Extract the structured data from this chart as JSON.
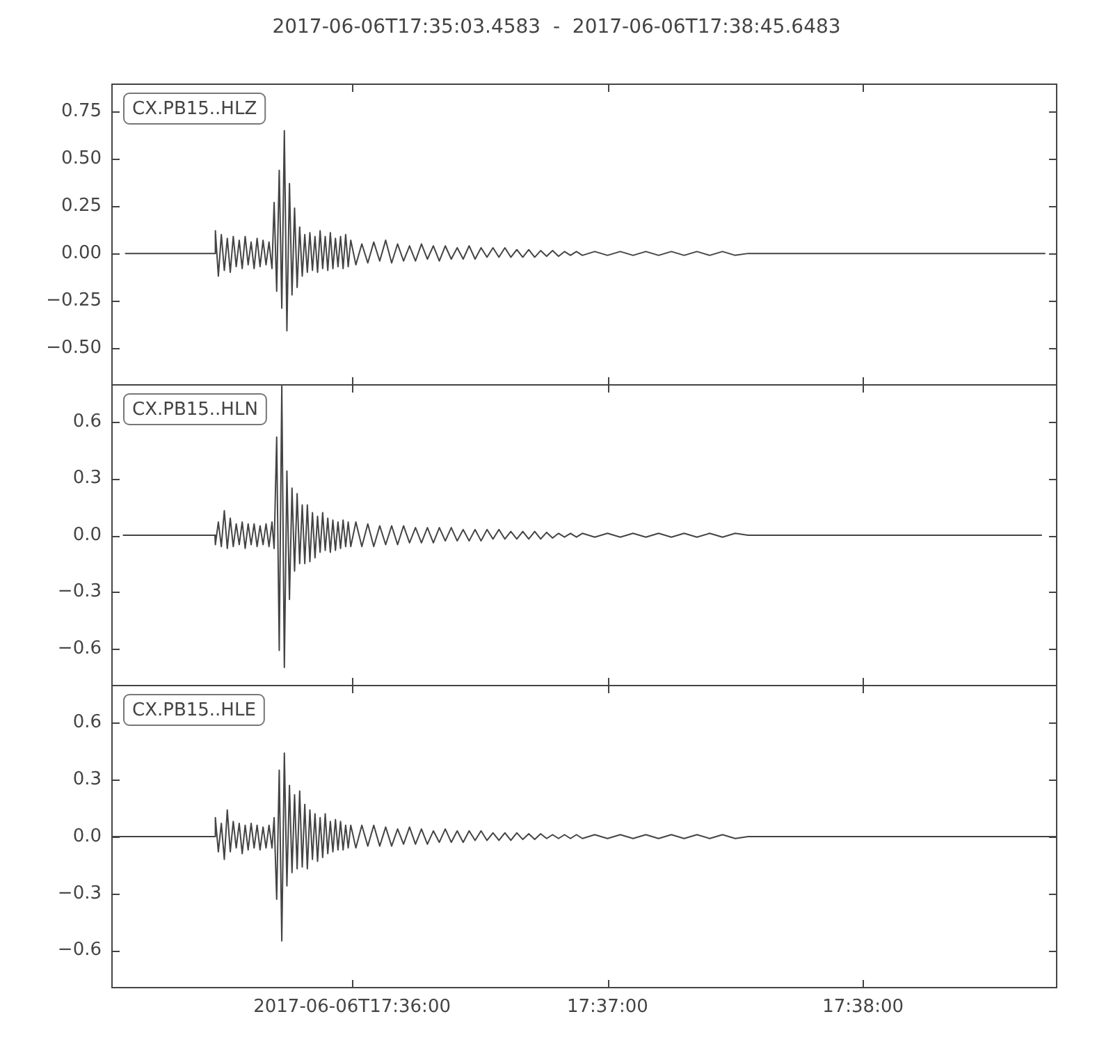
{
  "chart_data": [
    {
      "type": "line",
      "title": "2017-06-06T17:35:03.4583  -  2017-06-06T17:38:45.6483",
      "x": [
        "2017-06-06T17:35:06.8",
        "2017-06-06T17:35:27.8",
        "2017-06-06T17:35:27.9",
        "2017-06-06T17:35:28.6",
        "2017-06-06T17:35:29.3",
        "2017-06-06T17:35:30.0",
        "2017-06-06T17:35:30.7",
        "2017-06-06T17:35:31.4",
        "2017-06-06T17:35:32.1",
        "2017-06-06T17:35:32.8",
        "2017-06-06T17:35:33.5",
        "2017-06-06T17:35:34.2",
        "2017-06-06T17:35:34.9",
        "2017-06-06T17:35:35.6",
        "2017-06-06T17:35:36.3",
        "2017-06-06T17:35:37.0",
        "2017-06-06T17:35:37.7",
        "2017-06-06T17:35:38.4",
        "2017-06-06T17:35:39.1",
        "2017-06-06T17:35:39.8",
        "2017-06-06T17:35:40.5",
        "2017-06-06T17:35:41.2",
        "2017-06-06T17:35:41.7",
        "2017-06-06T17:35:42.3",
        "2017-06-06T17:35:42.9",
        "2017-06-06T17:35:43.5",
        "2017-06-06T17:35:44.1",
        "2017-06-06T17:35:44.7",
        "2017-06-06T17:35:45.3",
        "2017-06-06T17:35:45.9",
        "2017-06-06T17:35:46.5",
        "2017-06-06T17:35:47.1",
        "2017-06-06T17:35:47.7",
        "2017-06-06T17:35:48.3",
        "2017-06-06T17:35:48.9",
        "2017-06-06T17:35:49.5",
        "2017-06-06T17:35:50.1",
        "2017-06-06T17:35:50.7",
        "2017-06-06T17:35:51.3",
        "2017-06-06T17:35:51.9",
        "2017-06-06T17:35:52.5",
        "2017-06-06T17:35:53.1",
        "2017-06-06T17:35:53.7",
        "2017-06-06T17:35:54.3",
        "2017-06-06T17:35:54.9",
        "2017-06-06T17:35:55.5",
        "2017-06-06T17:35:56.1",
        "2017-06-06T17:35:56.7",
        "2017-06-06T17:35:57.3",
        "2017-06-06T17:35:57.9",
        "2017-06-06T17:35:58.5",
        "2017-06-06T17:35:59.1",
        "2017-06-06T17:35:59.7",
        "2017-06-06T17:36:00.9",
        "2017-06-06T17:36:02.3",
        "2017-06-06T17:36:03.7",
        "2017-06-06T17:36:05.1",
        "2017-06-06T17:36:06.5",
        "2017-06-06T17:36:07.9",
        "2017-06-06T17:36:09.3",
        "2017-06-06T17:36:10.7",
        "2017-06-06T17:36:12.1",
        "2017-06-06T17:36:13.5",
        "2017-06-06T17:36:14.9",
        "2017-06-06T17:36:16.3",
        "2017-06-06T17:36:17.7",
        "2017-06-06T17:36:19.1",
        "2017-06-06T17:36:20.5",
        "2017-06-06T17:36:21.9",
        "2017-06-06T17:36:23.3",
        "2017-06-06T17:36:24.7",
        "2017-06-06T17:36:26.1",
        "2017-06-06T17:36:27.5",
        "2017-06-06T17:36:28.9",
        "2017-06-06T17:36:30.3",
        "2017-06-06T17:36:31.7",
        "2017-06-06T17:36:33.1",
        "2017-06-06T17:36:34.5",
        "2017-06-06T17:36:35.9",
        "2017-06-06T17:36:37.3",
        "2017-06-06T17:36:38.7",
        "2017-06-06T17:36:40.1",
        "2017-06-06T17:36:41.5",
        "2017-06-06T17:36:42.9",
        "2017-06-06T17:36:44.3",
        "2017-06-06T17:36:45.7",
        "2017-06-06T17:36:47.1",
        "2017-06-06T17:36:48.5",
        "2017-06-06T17:36:49.9",
        "2017-06-06T17:36:51.3",
        "2017-06-06T17:36:52.7",
        "2017-06-06T17:36:54.1",
        "2017-06-06T17:36:57",
        "2017-06-06T17:37:00",
        "2017-06-06T17:37:03",
        "2017-06-06T17:37:06",
        "2017-06-06T17:37:09",
        "2017-06-06T17:37:12",
        "2017-06-06T17:37:15",
        "2017-06-06T17:37:18",
        "2017-06-06T17:37:21",
        "2017-06-06T17:37:24",
        "2017-06-06T17:37:27",
        "2017-06-06T17:37:30",
        "2017-06-06T17:37:33",
        "2017-06-06T17:38:42.7"
      ],
      "series": [
        {
          "name": "CX.PB15..HLZ",
          "color": "#444444",
          "values": [
            0,
            0,
            0.12,
            -0.12,
            0.1,
            -0.09,
            0.08,
            -0.1,
            0.09,
            -0.07,
            0.07,
            -0.08,
            0.09,
            -0.06,
            0.06,
            -0.08,
            0.08,
            -0.07,
            0.07,
            -0.06,
            0.06,
            -0.08,
            0.27,
            -0.2,
            0.44,
            -0.29,
            0.65,
            -0.41,
            0.37,
            -0.22,
            0.24,
            -0.18,
            0.14,
            -0.12,
            0.1,
            -0.1,
            0.11,
            -0.09,
            0.09,
            -0.1,
            0.12,
            -0.08,
            0.09,
            -0.09,
            0.11,
            -0.08,
            0.08,
            -0.07,
            0.09,
            -0.08,
            0.1,
            -0.07,
            0.07,
            -0.06,
            0.05,
            -0.05,
            0.06,
            -0.04,
            0.07,
            -0.05,
            0.05,
            -0.04,
            0.04,
            -0.04,
            0.05,
            -0.03,
            0.04,
            -0.04,
            0.04,
            -0.03,
            0.03,
            -0.03,
            0.04,
            -0.03,
            0.03,
            -0.02,
            0.03,
            -0.02,
            0.03,
            -0.02,
            0.02,
            -0.02,
            0.02,
            -0.02,
            0.015,
            -0.015,
            0.015,
            -0.015,
            0.01,
            -0.01,
            0.01,
            -0.01,
            0.01,
            -0.01,
            0.01,
            -0.01,
            0.01,
            -0.01,
            0.01,
            -0.01,
            0.01,
            -0.01,
            0.01,
            -0.01,
            0,
            0
          ]
        }
      ],
      "xlim": [
        "2017-06-06T17:35:03.4583",
        "2017-06-06T17:38:45.6483"
      ],
      "xticks": [
        {
          "value": "2017-06-06T17:36:00",
          "label": null
        },
        {
          "value": "2017-06-06T17:37:00",
          "label": null
        },
        {
          "value": "2017-06-06T17:38:00",
          "label": null
        }
      ],
      "ylim": [
        -0.7,
        0.9
      ],
      "yticks": [
        {
          "value": -0.5,
          "label": "−0.50"
        },
        {
          "value": -0.25,
          "label": "−0.25"
        },
        {
          "value": 0,
          "label": "0.00"
        },
        0.25,
        {
          "value": 0.5,
          "label": "0.50"
        },
        0.75
      ],
      "tick_labels": "y"
    },
    {
      "type": "line",
      "x": [
        "2017-06-06T17:35:06.3",
        "2017-06-06T17:35:27.8",
        "2017-06-06T17:35:27.9",
        "2017-06-06T17:35:28.6",
        "2017-06-06T17:35:29.3",
        "2017-06-06T17:35:30.0",
        "2017-06-06T17:35:30.7",
        "2017-06-06T17:35:31.4",
        "2017-06-06T17:35:32.1",
        "2017-06-06T17:35:32.8",
        "2017-06-06T17:35:33.5",
        "2017-06-06T17:35:34.2",
        "2017-06-06T17:35:34.9",
        "2017-06-06T17:35:35.6",
        "2017-06-06T17:35:36.3",
        "2017-06-06T17:35:37.0",
        "2017-06-06T17:35:37.7",
        "2017-06-06T17:35:38.4",
        "2017-06-06T17:35:39.1",
        "2017-06-06T17:35:39.8",
        "2017-06-06T17:35:40.5",
        "2017-06-06T17:35:41.2",
        "2017-06-06T17:35:41.7",
        "2017-06-06T17:35:42.3",
        "2017-06-06T17:35:42.9",
        "2017-06-06T17:35:43.5",
        "2017-06-06T17:35:44.1",
        "2017-06-06T17:35:44.7",
        "2017-06-06T17:35:45.3",
        "2017-06-06T17:35:45.9",
        "2017-06-06T17:35:46.5",
        "2017-06-06T17:35:47.1",
        "2017-06-06T17:35:47.7",
        "2017-06-06T17:35:48.3",
        "2017-06-06T17:35:48.9",
        "2017-06-06T17:35:49.5",
        "2017-06-06T17:35:50.1",
        "2017-06-06T17:35:50.7",
        "2017-06-06T17:35:51.3",
        "2017-06-06T17:35:51.9",
        "2017-06-06T17:35:52.5",
        "2017-06-06T17:35:53.1",
        "2017-06-06T17:35:53.7",
        "2017-06-06T17:35:54.3",
        "2017-06-06T17:35:54.9",
        "2017-06-06T17:35:55.5",
        "2017-06-06T17:35:56.1",
        "2017-06-06T17:35:56.7",
        "2017-06-06T17:35:57.3",
        "2017-06-06T17:35:57.9",
        "2017-06-06T17:35:58.5",
        "2017-06-06T17:35:59.1",
        "2017-06-06T17:35:59.7",
        "2017-06-06T17:36:00.9",
        "2017-06-06T17:36:02.3",
        "2017-06-06T17:36:03.7",
        "2017-06-06T17:36:05.1",
        "2017-06-06T17:36:06.5",
        "2017-06-06T17:36:07.9",
        "2017-06-06T17:36:09.3",
        "2017-06-06T17:36:10.7",
        "2017-06-06T17:36:12.1",
        "2017-06-06T17:36:13.5",
        "2017-06-06T17:36:14.9",
        "2017-06-06T17:36:16.3",
        "2017-06-06T17:36:17.7",
        "2017-06-06T17:36:19.1",
        "2017-06-06T17:36:20.5",
        "2017-06-06T17:36:21.9",
        "2017-06-06T17:36:23.3",
        "2017-06-06T17:36:24.7",
        "2017-06-06T17:36:26.1",
        "2017-06-06T17:36:27.5",
        "2017-06-06T17:36:28.9",
        "2017-06-06T17:36:30.3",
        "2017-06-06T17:36:31.7",
        "2017-06-06T17:36:33.1",
        "2017-06-06T17:36:34.5",
        "2017-06-06T17:36:35.9",
        "2017-06-06T17:36:37.3",
        "2017-06-06T17:36:38.7",
        "2017-06-06T17:36:40.1",
        "2017-06-06T17:36:41.5",
        "2017-06-06T17:36:42.9",
        "2017-06-06T17:36:44.3",
        "2017-06-06T17:36:45.7",
        "2017-06-06T17:36:47.1",
        "2017-06-06T17:36:48.5",
        "2017-06-06T17:36:49.9",
        "2017-06-06T17:36:51.3",
        "2017-06-06T17:36:52.7",
        "2017-06-06T17:36:54.1",
        "2017-06-06T17:36:57",
        "2017-06-06T17:37:00",
        "2017-06-06T17:37:03",
        "2017-06-06T17:37:06",
        "2017-06-06T17:37:09",
        "2017-06-06T17:37:12",
        "2017-06-06T17:37:15",
        "2017-06-06T17:37:18",
        "2017-06-06T17:37:21",
        "2017-06-06T17:37:24",
        "2017-06-06T17:37:27",
        "2017-06-06T17:37:30",
        "2017-06-06T17:37:33",
        "2017-06-06T17:38:41.9"
      ],
      "series": [
        {
          "name": "CX.PB15..HLN",
          "color": "#444444",
          "values": [
            0,
            0,
            -0.05,
            0.07,
            -0.06,
            0.13,
            -0.07,
            0.09,
            -0.06,
            0.06,
            -0.05,
            0.07,
            -0.07,
            0.06,
            -0.05,
            0.06,
            -0.06,
            0.05,
            -0.05,
            0.06,
            -0.06,
            0.07,
            -0.07,
            0.52,
            -0.61,
            0.79,
            -0.7,
            0.34,
            -0.34,
            0.25,
            -0.19,
            0.22,
            -0.15,
            0.16,
            -0.15,
            0.16,
            -0.14,
            0.12,
            -0.12,
            0.1,
            -0.09,
            0.12,
            -0.08,
            0.09,
            -0.09,
            0.08,
            -0.08,
            0.07,
            -0.07,
            0.08,
            -0.06,
            0.07,
            -0.06,
            0.07,
            -0.06,
            0.06,
            -0.06,
            0.05,
            -0.05,
            0.05,
            -0.05,
            0.05,
            -0.04,
            0.04,
            -0.04,
            0.04,
            -0.04,
            0.04,
            -0.03,
            0.04,
            -0.03,
            0.03,
            -0.03,
            0.03,
            -0.03,
            0.03,
            -0.02,
            0.03,
            -0.02,
            0.02,
            -0.02,
            0.02,
            -0.02,
            0.02,
            -0.02,
            0.015,
            -0.015,
            0.01,
            -0.01,
            0.01,
            -0.01,
            0.01,
            -0.01,
            0.01,
            -0.01,
            0.01,
            -0.01,
            0.01,
            -0.01,
            0.01,
            -0.01,
            0.01,
            -0.01,
            0.01,
            0,
            0
          ]
        }
      ],
      "xlim": [
        "2017-06-06T17:35:03.4583",
        "2017-06-06T17:38:45.6483"
      ],
      "xticks": [
        {
          "value": "2017-06-06T17:36:00",
          "label": null
        },
        {
          "value": "2017-06-06T17:37:00",
          "label": null
        },
        {
          "value": "2017-06-06T17:38:00",
          "label": null
        }
      ],
      "ylim": [
        -0.8,
        0.8
      ],
      "yticks": [
        {
          "value": -0.6,
          "label": "−0.6"
        },
        {
          "value": -0.3,
          "label": "−0.3"
        },
        {
          "value": 0,
          "label": "0.0"
        },
        0.3,
        0.6
      ],
      "tick_labels": "y"
    },
    {
      "type": "line",
      "x": [
        "2017-06-06T17:35:03.4583",
        "2017-06-06T17:35:27.8",
        "2017-06-06T17:35:27.9",
        "2017-06-06T17:35:28.6",
        "2017-06-06T17:35:29.3",
        "2017-06-06T17:35:30.0",
        "2017-06-06T17:35:30.7",
        "2017-06-06T17:35:31.4",
        "2017-06-06T17:35:32.1",
        "2017-06-06T17:35:32.8",
        "2017-06-06T17:35:33.5",
        "2017-06-06T17:35:34.2",
        "2017-06-06T17:35:34.9",
        "2017-06-06T17:35:35.6",
        "2017-06-06T17:35:36.3",
        "2017-06-06T17:35:37.0",
        "2017-06-06T17:35:37.7",
        "2017-06-06T17:35:38.4",
        "2017-06-06T17:35:39.1",
        "2017-06-06T17:35:39.8",
        "2017-06-06T17:35:40.5",
        "2017-06-06T17:35:41.2",
        "2017-06-06T17:35:41.7",
        "2017-06-06T17:35:42.3",
        "2017-06-06T17:35:42.9",
        "2017-06-06T17:35:43.5",
        "2017-06-06T17:35:44.1",
        "2017-06-06T17:35:44.7",
        "2017-06-06T17:35:45.3",
        "2017-06-06T17:35:45.9",
        "2017-06-06T17:35:46.5",
        "2017-06-06T17:35:47.1",
        "2017-06-06T17:35:47.7",
        "2017-06-06T17:35:48.3",
        "2017-06-06T17:35:48.9",
        "2017-06-06T17:35:49.5",
        "2017-06-06T17:35:50.1",
        "2017-06-06T17:35:50.7",
        "2017-06-06T17:35:51.3",
        "2017-06-06T17:35:51.9",
        "2017-06-06T17:35:52.5",
        "2017-06-06T17:35:53.1",
        "2017-06-06T17:35:53.7",
        "2017-06-06T17:35:54.3",
        "2017-06-06T17:35:54.9",
        "2017-06-06T17:35:55.5",
        "2017-06-06T17:35:56.1",
        "2017-06-06T17:35:56.7",
        "2017-06-06T17:35:57.3",
        "2017-06-06T17:35:57.9",
        "2017-06-06T17:35:58.5",
        "2017-06-06T17:35:59.1",
        "2017-06-06T17:35:59.7",
        "2017-06-06T17:36:00.9",
        "2017-06-06T17:36:02.3",
        "2017-06-06T17:36:03.7",
        "2017-06-06T17:36:05.1",
        "2017-06-06T17:36:06.5",
        "2017-06-06T17:36:07.9",
        "2017-06-06T17:36:09.3",
        "2017-06-06T17:36:10.7",
        "2017-06-06T17:36:12.1",
        "2017-06-06T17:36:13.5",
        "2017-06-06T17:36:14.9",
        "2017-06-06T17:36:16.3",
        "2017-06-06T17:36:17.7",
        "2017-06-06T17:36:19.1",
        "2017-06-06T17:36:20.5",
        "2017-06-06T17:36:21.9",
        "2017-06-06T17:36:23.3",
        "2017-06-06T17:36:24.7",
        "2017-06-06T17:36:26.1",
        "2017-06-06T17:36:27.5",
        "2017-06-06T17:36:28.9",
        "2017-06-06T17:36:30.3",
        "2017-06-06T17:36:31.7",
        "2017-06-06T17:36:33.1",
        "2017-06-06T17:36:34.5",
        "2017-06-06T17:36:35.9",
        "2017-06-06T17:36:37.3",
        "2017-06-06T17:36:38.7",
        "2017-06-06T17:36:40.1",
        "2017-06-06T17:36:41.5",
        "2017-06-06T17:36:42.9",
        "2017-06-06T17:36:44.3",
        "2017-06-06T17:36:45.7",
        "2017-06-06T17:36:47.1",
        "2017-06-06T17:36:48.5",
        "2017-06-06T17:36:49.9",
        "2017-06-06T17:36:51.3",
        "2017-06-06T17:36:52.7",
        "2017-06-06T17:36:54.1",
        "2017-06-06T17:36:57",
        "2017-06-06T17:37:00",
        "2017-06-06T17:37:03",
        "2017-06-06T17:37:06",
        "2017-06-06T17:37:09",
        "2017-06-06T17:37:12",
        "2017-06-06T17:37:15",
        "2017-06-06T17:37:18",
        "2017-06-06T17:37:21",
        "2017-06-06T17:37:24",
        "2017-06-06T17:37:27",
        "2017-06-06T17:37:30",
        "2017-06-06T17:37:33",
        "2017-06-06T17:38:45.6483"
      ],
      "series": [
        {
          "name": "CX.PB15..HLE",
          "color": "#444444",
          "values": [
            0,
            0,
            0.1,
            -0.08,
            0.07,
            -0.12,
            0.14,
            -0.08,
            0.08,
            -0.06,
            0.07,
            -0.09,
            0.06,
            -0.07,
            0.07,
            -0.06,
            0.06,
            -0.07,
            0.05,
            -0.06,
            0.06,
            -0.06,
            0.1,
            -0.33,
            0.35,
            -0.55,
            0.44,
            -0.26,
            0.27,
            -0.19,
            0.22,
            -0.17,
            0.24,
            -0.16,
            0.17,
            -0.17,
            0.14,
            -0.12,
            0.12,
            -0.13,
            0.1,
            -0.11,
            0.12,
            -0.09,
            0.08,
            -0.08,
            0.09,
            -0.07,
            0.08,
            -0.07,
            0.06,
            -0.06,
            0.06,
            -0.06,
            0.06,
            -0.05,
            0.06,
            -0.05,
            0.05,
            -0.05,
            0.04,
            -0.04,
            0.05,
            -0.04,
            0.04,
            -0.04,
            0.03,
            -0.03,
            0.04,
            -0.03,
            0.03,
            -0.03,
            0.03,
            -0.02,
            0.03,
            -0.02,
            0.02,
            -0.02,
            0.02,
            -0.02,
            0.02,
            -0.015,
            0.015,
            -0.015,
            0.015,
            -0.01,
            0.01,
            -0.01,
            0.01,
            -0.01,
            0.01,
            -0.01,
            0.01,
            -0.01,
            0.01,
            -0.01,
            0.01,
            -0.01,
            0.01,
            -0.01,
            0.01,
            -0.01,
            0.01,
            -0.01,
            0,
            0
          ]
        }
      ],
      "xlim": [
        "2017-06-06T17:35:03.4583",
        "2017-06-06T17:38:45.6483"
      ],
      "xticks": [
        {
          "value": "2017-06-06T17:36:00",
          "label": "2017-06-06T17:36:00"
        },
        {
          "value": "2017-06-06T17:37:00",
          "label": "17:37:00"
        },
        {
          "value": "2017-06-06T17:38:00",
          "label": "17:38:00"
        }
      ],
      "ylim": [
        -0.8,
        0.8
      ],
      "yticks": [
        {
          "value": -0.6,
          "label": "−0.6"
        },
        {
          "value": -0.3,
          "label": "−0.3"
        },
        {
          "value": 0,
          "label": "0.0"
        },
        0.3,
        0.6
      ]
    }
  ]
}
